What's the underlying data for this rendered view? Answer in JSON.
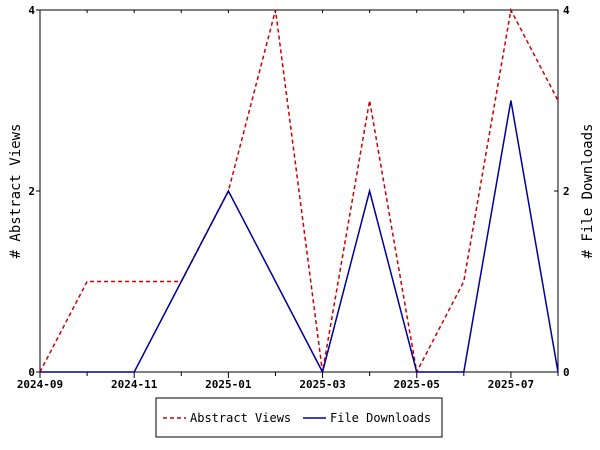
{
  "chart_data": {
    "type": "line",
    "title": "",
    "x": [
      "2024-09",
      "2024-10",
      "2024-11",
      "2024-12",
      "2025-01",
      "2025-02",
      "2025-03",
      "2025-04",
      "2025-05",
      "2025-06",
      "2025-07",
      "2025-08"
    ],
    "x_tick_labels": [
      "2024-09",
      "2024-11",
      "2025-01",
      "2025-03",
      "2025-05",
      "2025-07"
    ],
    "ylabel_left": "# Abstract Views",
    "ylabel_right": "# File Downloads",
    "ylim_left": [
      0,
      4
    ],
    "ylim_right": [
      0,
      4
    ],
    "y_ticks_left": [
      0,
      2,
      4
    ],
    "y_ticks_right": [
      0,
      2,
      4
    ],
    "grid": false,
    "legend_position": "bottom-center",
    "series": [
      {
        "name": "Abstract Views",
        "axis": "left",
        "color": "#cc0000",
        "style": "dashed",
        "values": [
          0,
          1,
          1,
          1,
          2,
          4,
          0,
          3,
          0,
          1,
          4,
          3
        ]
      },
      {
        "name": "File Downloads",
        "axis": "right",
        "color": "#000099",
        "style": "solid",
        "values": [
          0,
          0,
          0,
          1,
          2,
          1,
          0,
          2,
          0,
          0,
          3,
          0
        ]
      }
    ]
  }
}
